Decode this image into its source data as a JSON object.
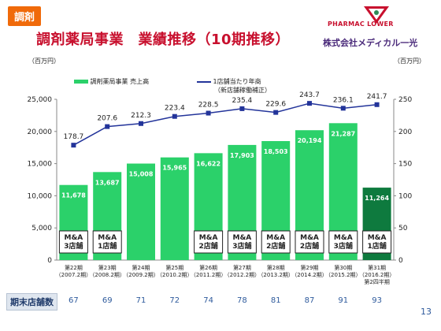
{
  "header": {
    "tag": "調剤",
    "title": "調剤薬局事業　業績推移（10期推移）",
    "logo_text": "PHARMAC LOWER",
    "corp_name": "株式会社メディカル一光"
  },
  "legend": {
    "bar": "調剤薬局事業 売上高",
    "line": "1店舗当たり年商",
    "line_note": "（新店舗稼働補正）"
  },
  "units": {
    "left": "（百万円）",
    "right": "（百万円）"
  },
  "store_count_label": "期末店舗数",
  "page_number": "13",
  "colors": {
    "bar": "#2bd16a",
    "bar_last": "#0e7a3e",
    "line": "#23349a",
    "title": "#c8102e",
    "tag": "#f06a0a"
  },
  "chart_data": {
    "type": "bar",
    "categories": [
      [
        "第22期",
        "（2007.2期）"
      ],
      [
        "第23期",
        "（2008.2期）"
      ],
      [
        "第24期",
        "（2009.2期）"
      ],
      [
        "第25期",
        "（2010.2期）"
      ],
      [
        "第26期",
        "（2011.2期）"
      ],
      [
        "第27期",
        "（2012.2期）"
      ],
      [
        "第28期",
        "（2013.2期）"
      ],
      [
        "第29期",
        "（2014.2期）"
      ],
      [
        "第30期",
        "（2015.2期）"
      ],
      [
        "第31期",
        "（2016.2期）",
        "第2四半期"
      ]
    ],
    "series": [
      {
        "name": "調剤薬局事業 売上高",
        "type": "bar",
        "axis": "left",
        "values": [
          11678,
          13687,
          15008,
          15965,
          16622,
          17903,
          18503,
          20194,
          21287,
          11264
        ],
        "labels": [
          "11,678",
          "13,687",
          "15,008",
          "15,965",
          "16,622",
          "17,903",
          "18,503",
          "20,194",
          "21,287",
          "11,264"
        ]
      },
      {
        "name": "1店舗当たり年商",
        "type": "line",
        "axis": "right",
        "values": [
          178.7,
          207.6,
          212.3,
          223.4,
          228.5,
          235.4,
          229.6,
          243.7,
          236.1,
          241.7
        ],
        "labels": [
          "178.7",
          "207.6",
          "212.3",
          "223.4",
          "228.5",
          "235.4",
          "229.6",
          "243.7",
          "236.1",
          "241.7"
        ]
      }
    ],
    "ylim_left": [
      0,
      25000
    ],
    "yticks_left": [
      "0",
      "5,000",
      "10,000",
      "15,000",
      "20,000",
      "25,000"
    ],
    "ylim_right": [
      0,
      250
    ],
    "yticks_right": [
      "0",
      "50",
      "100",
      "150",
      "200",
      "250"
    ],
    "annotations": [
      {
        "index": 0,
        "lines": [
          "M&A",
          "3店舗"
        ]
      },
      {
        "index": 1,
        "lines": [
          "M&A",
          "1店舗"
        ]
      },
      {
        "index": 4,
        "lines": [
          "M&A",
          "2店舗"
        ]
      },
      {
        "index": 5,
        "lines": [
          "M&A",
          "3店舗"
        ]
      },
      {
        "index": 6,
        "lines": [
          "M&A",
          "2店舗"
        ]
      },
      {
        "index": 7,
        "lines": [
          "M&A",
          "2店舗"
        ]
      },
      {
        "index": 8,
        "lines": [
          "M&A",
          "3店舗"
        ]
      },
      {
        "index": 9,
        "lines": [
          "M&A",
          "1店舗"
        ]
      }
    ],
    "store_counts": [
      "67",
      "69",
      "71",
      "72",
      "74",
      "78",
      "81",
      "87",
      "91",
      "93"
    ],
    "legend_position": "top-left",
    "grid": false
  }
}
